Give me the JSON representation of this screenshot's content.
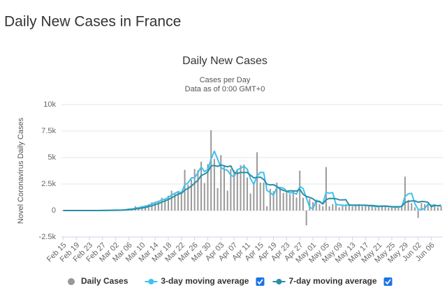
{
  "header": {
    "title": "Daily New Cases in France"
  },
  "chart_data": {
    "type": "bar",
    "title": "Daily New Cases",
    "subtitle": [
      "Cases per Day",
      "Data as of 0:00 GMT+0"
    ],
    "ylabel": "Novel Coronavirus Daily Cases",
    "ylim": [
      -2500,
      10000
    ],
    "yticks": [
      {
        "value": -2500,
        "label": "-2.5k"
      },
      0,
      {
        "value": 2500,
        "label": "2.5k"
      },
      {
        "value": 5000,
        "label": "5k"
      },
      {
        "value": 7500,
        "label": "7.5k"
      },
      {
        "value": 10000,
        "label": "10k"
      }
    ],
    "grid": true,
    "categories": [
      "Feb 15",
      null,
      null,
      null,
      "Feb 19",
      null,
      null,
      null,
      "Feb 23",
      null,
      null,
      null,
      "Feb 27",
      null,
      null,
      null,
      "Mar 02",
      null,
      null,
      null,
      "Mar 06",
      null,
      null,
      null,
      "Mar 10",
      null,
      null,
      null,
      "Mar 14",
      null,
      null,
      null,
      "Mar 18",
      null,
      null,
      null,
      "Mar 22",
      null,
      null,
      null,
      "Mar 26",
      null,
      null,
      null,
      "Mar 30",
      null,
      null,
      null,
      "Apr 03",
      null,
      null,
      null,
      "Apr 07",
      null,
      null,
      null,
      "Apr 11",
      null,
      null,
      null,
      "Apr 15",
      null,
      null,
      null,
      "Apr 19",
      null,
      null,
      null,
      "Apr 23",
      null,
      null,
      null,
      "Apr 27",
      null,
      null,
      null,
      "May 01",
      null,
      null,
      null,
      "May 05",
      null,
      null,
      null,
      "May 09",
      null,
      null,
      null,
      "May 13",
      null,
      null,
      null,
      "May 17",
      null,
      null,
      null,
      "May 21",
      null,
      null,
      null,
      "May 25",
      null,
      null,
      null,
      "May 29",
      null,
      null,
      null,
      "Jun 02",
      null,
      null,
      null,
      "Jun 06",
      null,
      null,
      null
    ],
    "series": [
      {
        "name": "Daily Cases",
        "type": "bar",
        "color": "#999999",
        "values": [
          0,
          0,
          0,
          0,
          0,
          0,
          0,
          0,
          0,
          2,
          2,
          4,
          20,
          19,
          43,
          30,
          61,
          21,
          73,
          138,
          190,
          103,
          410,
          286,
          372,
          497,
          595,
          785,
          838,
          924,
          1210,
          1097,
          1404,
          1861,
          1617,
          1847,
          1559,
          3838,
          2446,
          2931,
          3922,
          3809,
          4611,
          2599,
          4376,
          7578,
          4861,
          2116,
          5233,
          4267,
          1873,
          3912,
          3777,
          3881,
          4286,
          4342,
          3114,
          1613,
          2673,
          5497,
          2633,
          2641,
          405,
          2051,
          1827,
          2628,
          2083,
          1653,
          1773,
          1537,
          1842,
          1228,
          3764,
          1200,
          -1400,
          1100,
          800,
          1000,
          600,
          400,
          4100,
          400,
          600,
          700,
          300,
          500,
          600,
          500,
          400,
          500,
          600,
          400,
          500,
          400,
          400,
          300,
          400,
          500,
          400,
          300,
          300,
          350,
          300,
          500,
          3200,
          1000,
          700,
          300,
          -700,
          700,
          600,
          500,
          400,
          600,
          300,
          400
        ]
      },
      {
        "name": "3-day moving average",
        "type": "line",
        "color": "#3fc1ef",
        "values": [
          0,
          0,
          0,
          0,
          0,
          0,
          0,
          0,
          0,
          1,
          1,
          3,
          9,
          14,
          27,
          31,
          45,
          37,
          52,
          77,
          134,
          144,
          234,
          266,
          356,
          385,
          488,
          626,
          739,
          849,
          991,
          1077,
          1237,
          1454,
          1627,
          1775,
          1674,
          2415,
          2614,
          3072,
          3100,
          3554,
          4114,
          3673,
          3862,
          4851,
          5605,
          4852,
          4070,
          3872,
          3791,
          3351,
          3187,
          3857,
          3981,
          4170,
          3914,
          3023,
          2467,
          3261,
          3601,
          3590,
          1893,
          1699,
          1428,
          2169,
          2179,
          2121,
          1836,
          1654,
          1717,
          1536,
          2278,
          2064,
          1188,
          300,
          167,
          967,
          800,
          667,
          1700,
          1633,
          1700,
          567,
          533,
          500,
          467,
          533,
          500,
          467,
          500,
          500,
          500,
          433,
          433,
          367,
          367,
          400,
          433,
          400,
          333,
          317,
          317,
          383,
          1333,
          1567,
          1633,
          667,
          100,
          100,
          200,
          600,
          500,
          500,
          433,
          433
        ]
      },
      {
        "name": "7-day moving average",
        "type": "line",
        "color": "#2a8ea6",
        "values": [
          0,
          0,
          0,
          0,
          0,
          0,
          0,
          0,
          0,
          0,
          1,
          1,
          4,
          7,
          13,
          17,
          26,
          28,
          39,
          52,
          77,
          99,
          145,
          183,
          239,
          292,
          369,
          450,
          551,
          662,
          785,
          905,
          1039,
          1197,
          1374,
          1551,
          1620,
          1918,
          2085,
          2294,
          2594,
          2845,
          3301,
          3442,
          3648,
          4213,
          4251,
          4165,
          4303,
          4208,
          4129,
          4211,
          3603,
          3478,
          3604,
          3584,
          3595,
          3333,
          3087,
          3133,
          3150,
          2937,
          2496,
          2416,
          2440,
          2264,
          2024,
          1899,
          1801,
          1868,
          1857,
          1836,
          1998,
          1533,
          1320,
          1236,
          1105,
          855,
          871,
          614,
          1029,
          1143,
          1129,
          1114,
          1014,
          1000,
          1029,
          514,
          514,
          514,
          514,
          500,
          500,
          471,
          471,
          443,
          414,
          414,
          414,
          386,
          371,
          364,
          364,
          379,
          764,
          864,
          907,
          907,
          786,
          857,
          843,
          771,
          357,
          486,
          457,
          500
        ]
      }
    ]
  }
}
